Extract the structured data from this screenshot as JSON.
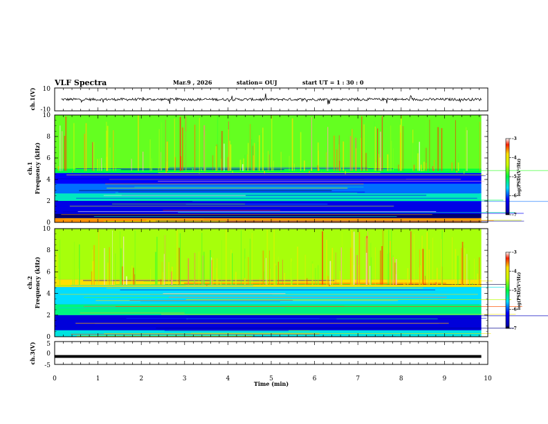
{
  "header": {
    "title": "VLF Spectra",
    "date": "Mar.9  , 2026",
    "station": "station= OUJ",
    "start_time": "start  UT =   1 : 30 : 0"
  },
  "chart_data": [
    {
      "type": "line",
      "ylabel": "ch.1(V)",
      "ylim": [
        -10,
        10
      ],
      "yticks": [
        "10",
        "-10"
      ],
      "xlim": [
        0,
        10
      ],
      "baseline": 0,
      "color": "#000000"
    },
    {
      "type": "heatmap",
      "ylabel_line1": "ch.1",
      "ylabel_line2": "Frequency  (kHz)",
      "ylim": [
        0,
        10
      ],
      "yticks": [
        "0",
        "2",
        "4",
        "6",
        "8",
        "10"
      ],
      "xlim": [
        0,
        9.85
      ],
      "bands": [
        {
          "from": 0.0,
          "to": 0.4,
          "level": -3.6
        },
        {
          "from": 0.4,
          "to": 0.8,
          "level": -6.9
        },
        {
          "from": 0.8,
          "to": 2.0,
          "level": -6.4
        },
        {
          "from": 2.0,
          "to": 2.7,
          "level": -5.4
        },
        {
          "from": 2.7,
          "to": 3.6,
          "level": -5.9
        },
        {
          "from": 3.6,
          "to": 4.6,
          "level": -6.2
        },
        {
          "from": 4.6,
          "to": 5.0,
          "level": -5.0
        },
        {
          "from": 5.0,
          "to": 10.0,
          "level": -4.7
        }
      ],
      "colorbar": {
        "label": "log(PSD)(V²/Hz)",
        "range": [
          -7,
          -3
        ],
        "ticks": [
          "-3",
          "-4",
          "-5",
          "-6",
          "-7"
        ]
      }
    },
    {
      "type": "heatmap",
      "ylabel_line1": "ch.2",
      "ylabel_line2": "Frequency  (kHz)",
      "ylim": [
        0,
        10
      ],
      "yticks": [
        "0",
        "2",
        "4",
        "6",
        "8",
        "10"
      ],
      "xlim": [
        0,
        9.85
      ],
      "bands": [
        {
          "from": 0.0,
          "to": 0.6,
          "level": -5.5
        },
        {
          "from": 0.6,
          "to": 2.0,
          "level": -6.5
        },
        {
          "from": 2.0,
          "to": 3.0,
          "level": -5.2
        },
        {
          "from": 3.0,
          "to": 4.6,
          "level": -5.6
        },
        {
          "from": 4.6,
          "to": 5.3,
          "level": -3.8
        },
        {
          "from": 5.3,
          "to": 10.0,
          "level": -4.5
        }
      ],
      "colorbar": {
        "label": "log(PSD)(V²/Hz)",
        "range": [
          -7,
          -3
        ],
        "ticks": [
          "-3",
          "-4",
          "-5",
          "-6",
          "-7"
        ]
      }
    },
    {
      "type": "line",
      "ylabel": "ch.3(V)",
      "ylim": [
        -5,
        5
      ],
      "yticks": [
        "5",
        "0",
        "-5"
      ],
      "xlim": [
        0,
        10
      ],
      "baseline": -1.5,
      "color": "#000000"
    }
  ],
  "xaxis": {
    "label": "Time  (min)",
    "ticks": [
      "0",
      "1",
      "2",
      "3",
      "4",
      "5",
      "6",
      "7",
      "8",
      "9",
      "10"
    ]
  }
}
